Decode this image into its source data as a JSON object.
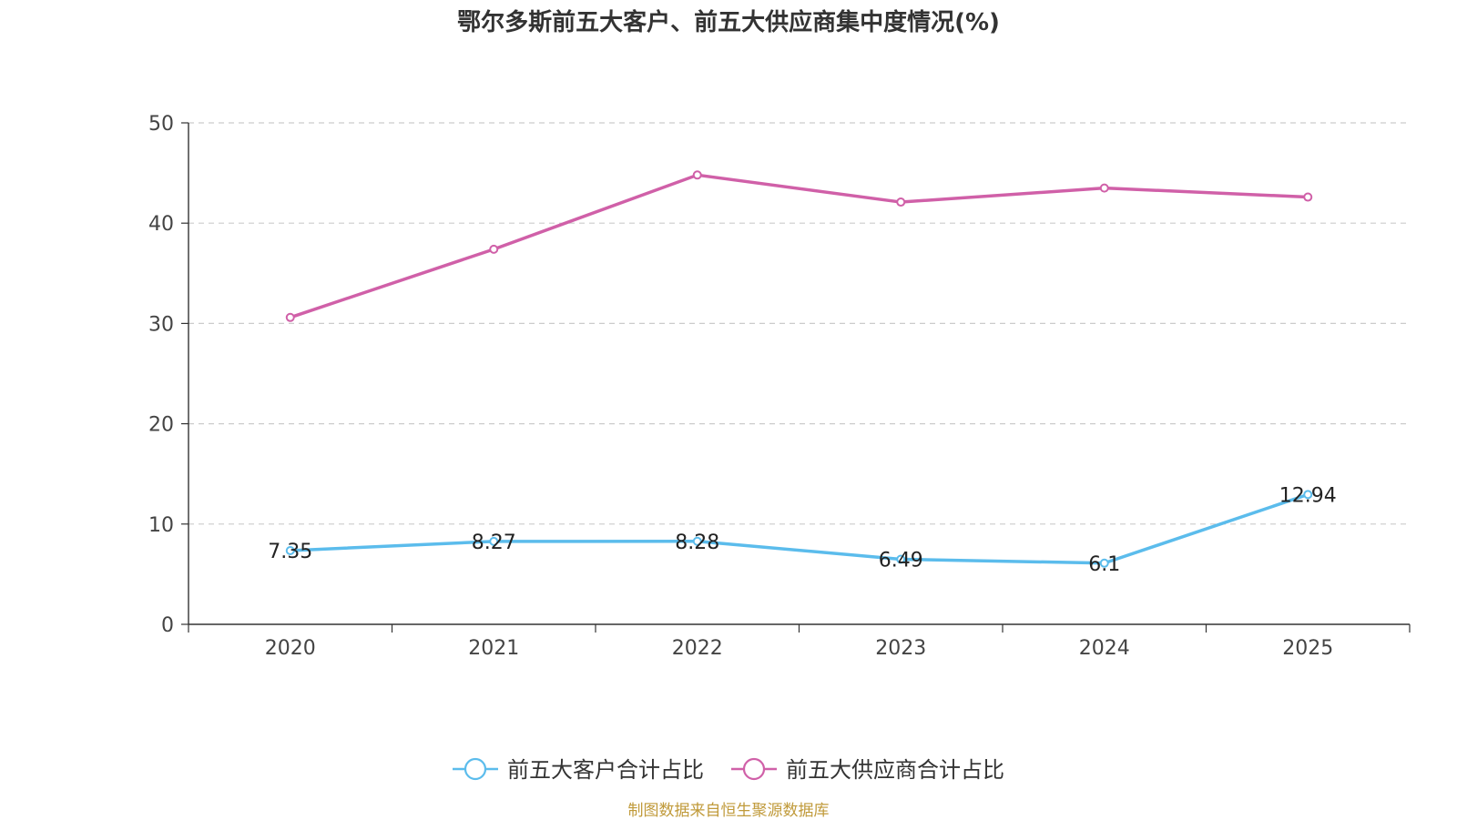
{
  "chart_data": {
    "type": "line",
    "title": "鄂尔多斯前五大客户、前五大供应商集中度情况(%)",
    "categories": [
      "2020",
      "2021",
      "2022",
      "2023",
      "2024",
      "2025"
    ],
    "ylim": [
      0,
      50
    ],
    "yticks": [
      0,
      10,
      20,
      30,
      40,
      50
    ],
    "grid": true,
    "legend_position": "bottom-center",
    "series": [
      {
        "name": "前五大客户合计占比",
        "color": "#5bbcec",
        "values": [
          7.35,
          8.27,
          8.28,
          6.49,
          6.1,
          12.94
        ],
        "labels": [
          "7.35",
          "8.27",
          "8.28",
          "6.49",
          "6.1",
          "12.94"
        ],
        "show_labels": true
      },
      {
        "name": "前五大供应商合计占比",
        "color": "#d060a8",
        "values": [
          30.6,
          37.4,
          44.8,
          42.1,
          43.5,
          42.6
        ],
        "show_labels": false
      }
    ]
  },
  "source": "制图数据来自恒生聚源数据库"
}
